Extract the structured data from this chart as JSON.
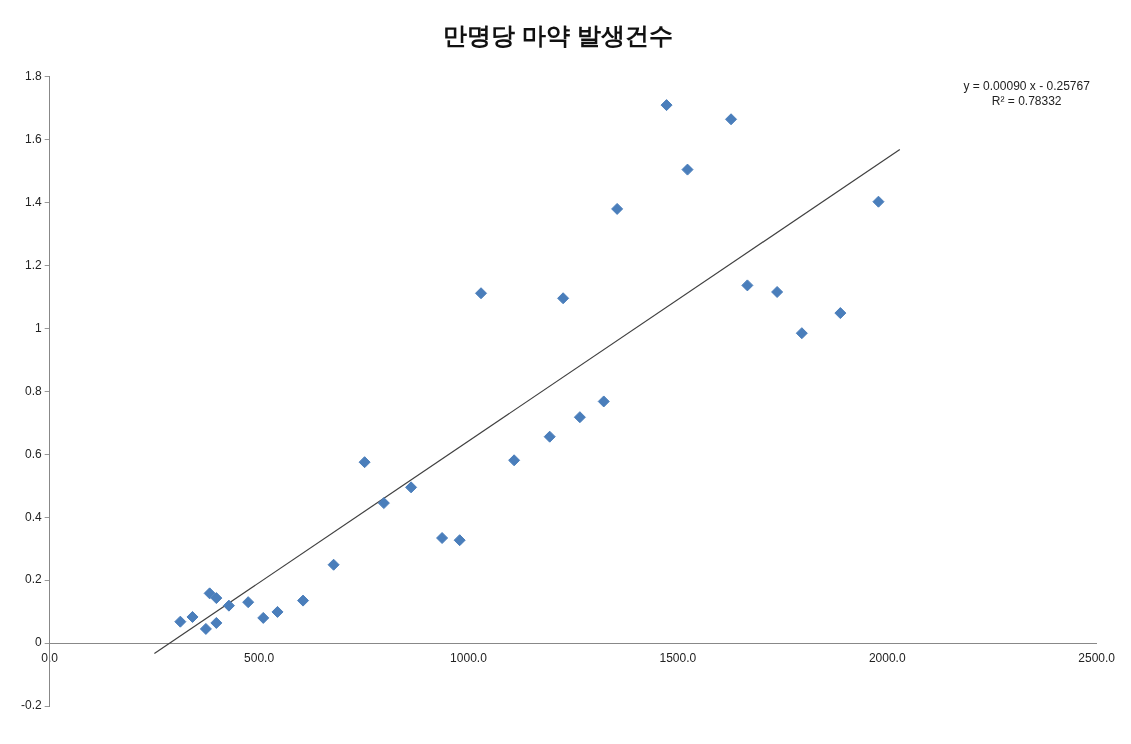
{
  "chart_data": {
    "type": "scatter",
    "title": "만명당 마약 발생건수",
    "annotations": [
      "y = 0.00090 x - 0.25767",
      "R² = 0.78332"
    ],
    "series": [
      {
        "type": "scatter",
        "color": "#4a7ebb",
        "marker": "diamond",
        "x": [
          312,
          341,
          373,
          382,
          398,
          398,
          428,
          474,
          510,
          544,
          605,
          678,
          752,
          798,
          863,
          937,
          979,
          1030,
          1109,
          1194,
          1226,
          1266,
          1323,
          1355,
          1473,
          1523,
          1627,
          1666,
          1737,
          1796,
          1888,
          1979
        ],
        "values": [
          0.068,
          0.083,
          0.045,
          0.158,
          0.143,
          0.064,
          0.119,
          0.13,
          0.08,
          0.099,
          0.135,
          0.249,
          0.575,
          0.445,
          0.495,
          0.334,
          0.327,
          1.112,
          0.581,
          0.656,
          1.096,
          0.718,
          0.768,
          1.38,
          1.71,
          1.505,
          1.665,
          1.137,
          1.116,
          0.985,
          1.049,
          1.403
        ]
      },
      {
        "type": "line",
        "color": "#404040",
        "x": [
          250,
          2030
        ],
        "values": [
          -0.033,
          1.569
        ]
      }
    ],
    "xlim": [
      0,
      2500
    ],
    "ylim": [
      -0.2,
      1.8
    ],
    "xticks": [
      {
        "value": 0,
        "label": "0.0"
      },
      {
        "value": 500,
        "label": "500.0"
      },
      {
        "value": 1000,
        "label": "1000.0"
      },
      {
        "value": 1500,
        "label": "1500.0"
      },
      {
        "value": 2000,
        "label": "2000.0"
      },
      {
        "value": 2500,
        "label": "2500.0"
      }
    ],
    "yticks": [
      -0.2,
      0,
      0.2,
      0.4,
      0.6,
      0.8,
      1,
      1.2,
      1.4,
      1.6,
      1.8
    ]
  }
}
